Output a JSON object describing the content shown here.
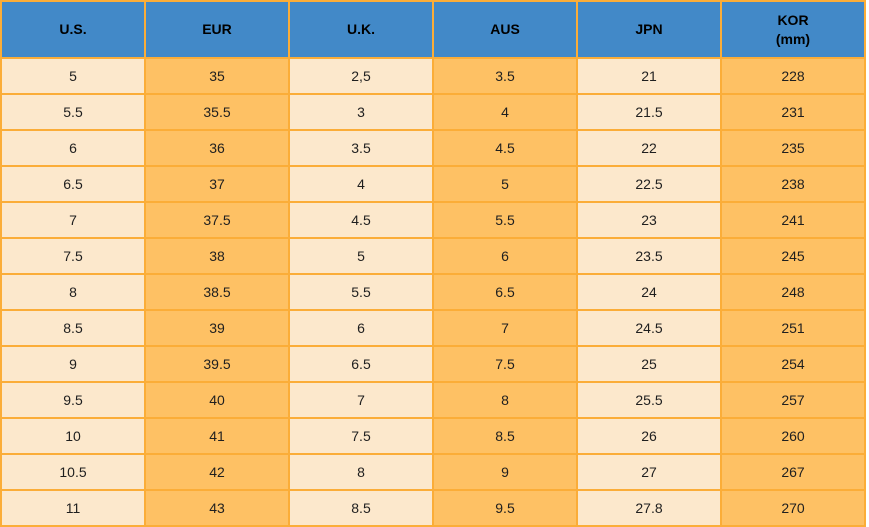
{
  "colors": {
    "header_bg": "#4289C8",
    "cell_light": "#FCE8CC",
    "cell_orange": "#FEC164",
    "border": "#FBAD38",
    "text": "#1F1F1F",
    "page_bg": "#FFFFFF"
  },
  "table": {
    "columns": [
      {
        "key": "us",
        "label": "U.S.",
        "sublabel": "",
        "tone": "light"
      },
      {
        "key": "eur",
        "label": "EUR",
        "sublabel": "",
        "tone": "orange"
      },
      {
        "key": "uk",
        "label": "U.K.",
        "sublabel": "",
        "tone": "light"
      },
      {
        "key": "aus",
        "label": "AUS",
        "sublabel": "",
        "tone": "orange"
      },
      {
        "key": "jpn",
        "label": "JPN",
        "sublabel": "",
        "tone": "light"
      },
      {
        "key": "kor",
        "label": "KOR",
        "sublabel": "(mm)",
        "tone": "orange"
      }
    ],
    "rows": [
      [
        "5",
        "35",
        "2,5",
        "3.5",
        "21",
        "228"
      ],
      [
        "5.5",
        "35.5",
        "3",
        "4",
        "21.5",
        "231"
      ],
      [
        "6",
        "36",
        "3.5",
        "4.5",
        "22",
        "235"
      ],
      [
        "6.5",
        "37",
        "4",
        "5",
        "22.5",
        "238"
      ],
      [
        "7",
        "37.5",
        "4.5",
        "5.5",
        "23",
        "241"
      ],
      [
        "7.5",
        "38",
        "5",
        "6",
        "23.5",
        "245"
      ],
      [
        "8",
        "38.5",
        "5.5",
        "6.5",
        "24",
        "248"
      ],
      [
        "8.5",
        "39",
        "6",
        "7",
        "24.5",
        "251"
      ],
      [
        "9",
        "39.5",
        "6.5",
        "7.5",
        "25",
        "254"
      ],
      [
        "9.5",
        "40",
        "7",
        "8",
        "25.5",
        "257"
      ],
      [
        "10",
        "41",
        "7.5",
        "8.5",
        "26",
        "260"
      ],
      [
        "10.5",
        "42",
        "8",
        "9",
        "27",
        "267"
      ],
      [
        "11",
        "43",
        "8.5",
        "9.5",
        "27.8",
        "270"
      ]
    ]
  }
}
